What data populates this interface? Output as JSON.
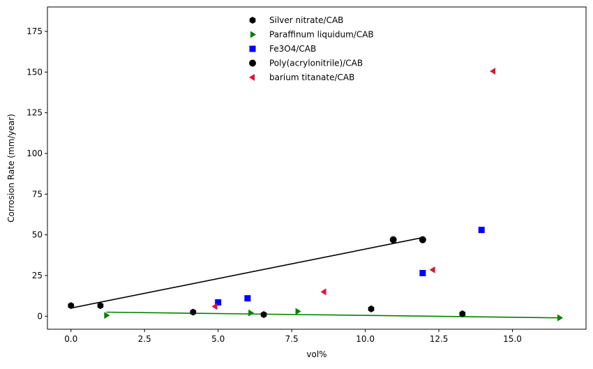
{
  "chart_data": {
    "type": "scatter",
    "title": "",
    "xlabel": "vol%",
    "ylabel": "Corrosion Rate (mm/year)",
    "xlim": [
      -0.8,
      17.5
    ],
    "ylim": [
      -8,
      190
    ],
    "xticks": [
      0.0,
      2.5,
      5.0,
      7.5,
      10.0,
      12.5,
      15.0
    ],
    "xtick_labels": [
      "0.0",
      "2.5",
      "5.0",
      "7.5",
      "10.0",
      "12.5",
      "15.0"
    ],
    "yticks": [
      0,
      25,
      50,
      75,
      100,
      125,
      150,
      175
    ],
    "ytick_labels": [
      "0",
      "25",
      "50",
      "75",
      "100",
      "125",
      "150",
      "175"
    ],
    "grid": false,
    "legend_position": "top-center",
    "series": [
      {
        "name": "Silver nitrate/CAB",
        "marker": "hexagon",
        "color": "#000000",
        "x": [
          0.0,
          1.0,
          4.15,
          6.55,
          10.2,
          13.3
        ],
        "y": [
          6.5,
          6.5,
          2.5,
          1.0,
          4.5,
          1.5
        ]
      },
      {
        "name": "Paraffinum liquidum/CAB",
        "marker": "triangle-right",
        "color": "#008000",
        "x": [
          1.2,
          6.1,
          7.7,
          16.6
        ],
        "y": [
          0.5,
          2.0,
          3.0,
          -1.0
        ]
      },
      {
        "name": "Fe3O4/CAB",
        "marker": "square",
        "color": "#0000ff",
        "x": [
          5.0,
          6.0,
          11.95,
          13.95
        ],
        "y": [
          8.5,
          11.0,
          26.5,
          53.0
        ]
      },
      {
        "name": "Poly(acrylonitrile)/CAB",
        "marker": "circle",
        "color": "#000000",
        "x": [
          10.95,
          11.95
        ],
        "y": [
          47.0,
          47.0
        ]
      },
      {
        "name": "barium titanate/CAB",
        "marker": "triangle-left",
        "color": "#dc143c",
        "x": [
          4.9,
          8.6,
          12.3,
          14.35
        ],
        "y": [
          6.0,
          15.0,
          28.5,
          150.5
        ]
      }
    ],
    "lines": [
      {
        "color": "#000000",
        "x": [
          0.0,
          12.0
        ],
        "y": [
          5.0,
          48.5
        ]
      },
      {
        "color": "#008000",
        "x": [
          1.2,
          16.6
        ],
        "y": [
          2.5,
          -1.0
        ]
      }
    ]
  }
}
